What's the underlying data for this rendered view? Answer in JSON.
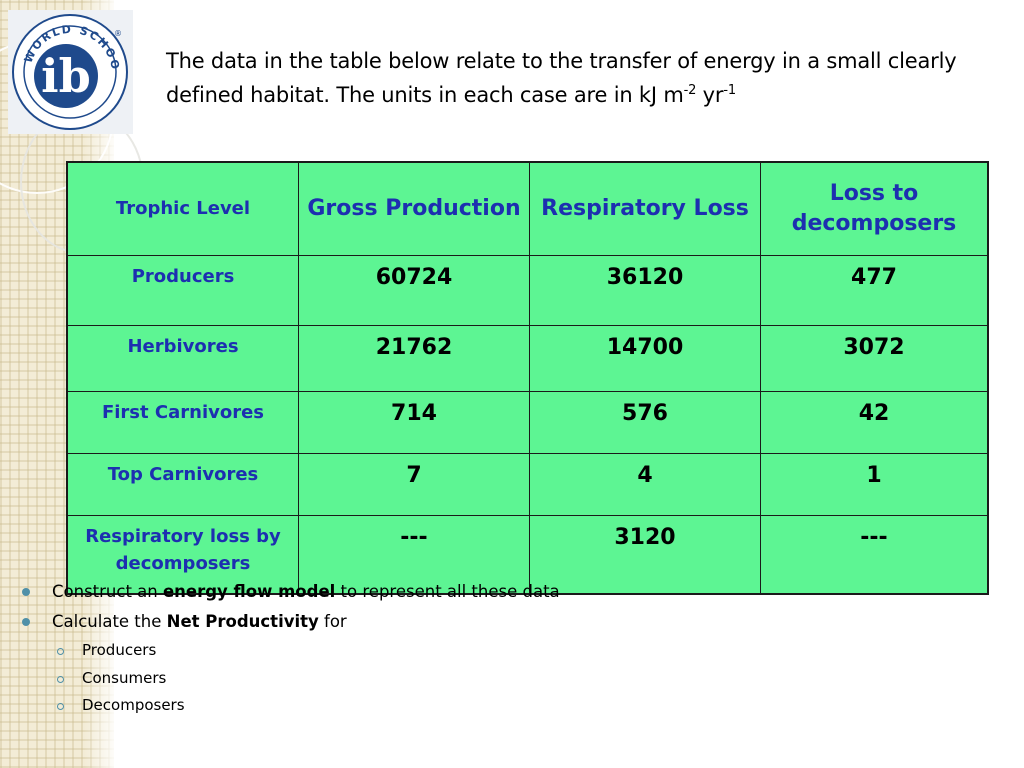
{
  "logo": {
    "ring_text": "WORLD SCHOOL",
    "letters": "ib",
    "registered": "®"
  },
  "title": {
    "text": "The data in the table below relate to the transfer of energy in a small clearly defined habitat. The units in each case are in kJ m",
    "exp1": "-2",
    "mid": " yr",
    "exp2": "-1"
  },
  "table": {
    "headers": [
      "Trophic Level",
      "Gross Production",
      "Respiratory Loss",
      "Loss to decomposers"
    ],
    "rows": [
      {
        "label": "Producers",
        "gross": "60724",
        "resp": "36120",
        "decomp": "477"
      },
      {
        "label": "Herbivores",
        "gross": "21762",
        "resp": "14700",
        "decomp": "3072"
      },
      {
        "label": "First Carnivores",
        "gross": "714",
        "resp": "576",
        "decomp": "42"
      },
      {
        "label": "Top Carnivores",
        "gross": "7",
        "resp": "4",
        "decomp": "1"
      },
      {
        "label": "Respiratory loss by decomposers",
        "gross": "---",
        "resp": "3120",
        "decomp": "---"
      }
    ]
  },
  "bullets": {
    "item1": {
      "pre": "Construct an ",
      "bold": "energy flow model",
      "post": " to represent all these data"
    },
    "item2": {
      "pre": "Calculate the ",
      "bold": "Net Productivity",
      "post": " for"
    },
    "subitems": [
      "Producers",
      "Consumers",
      "Decomposers"
    ]
  },
  "colors": {
    "table_fill": "#5df593",
    "header_text": "#1d2fb0",
    "bullet": "#4f90a8",
    "logo_blue": "#1f4a8c"
  }
}
